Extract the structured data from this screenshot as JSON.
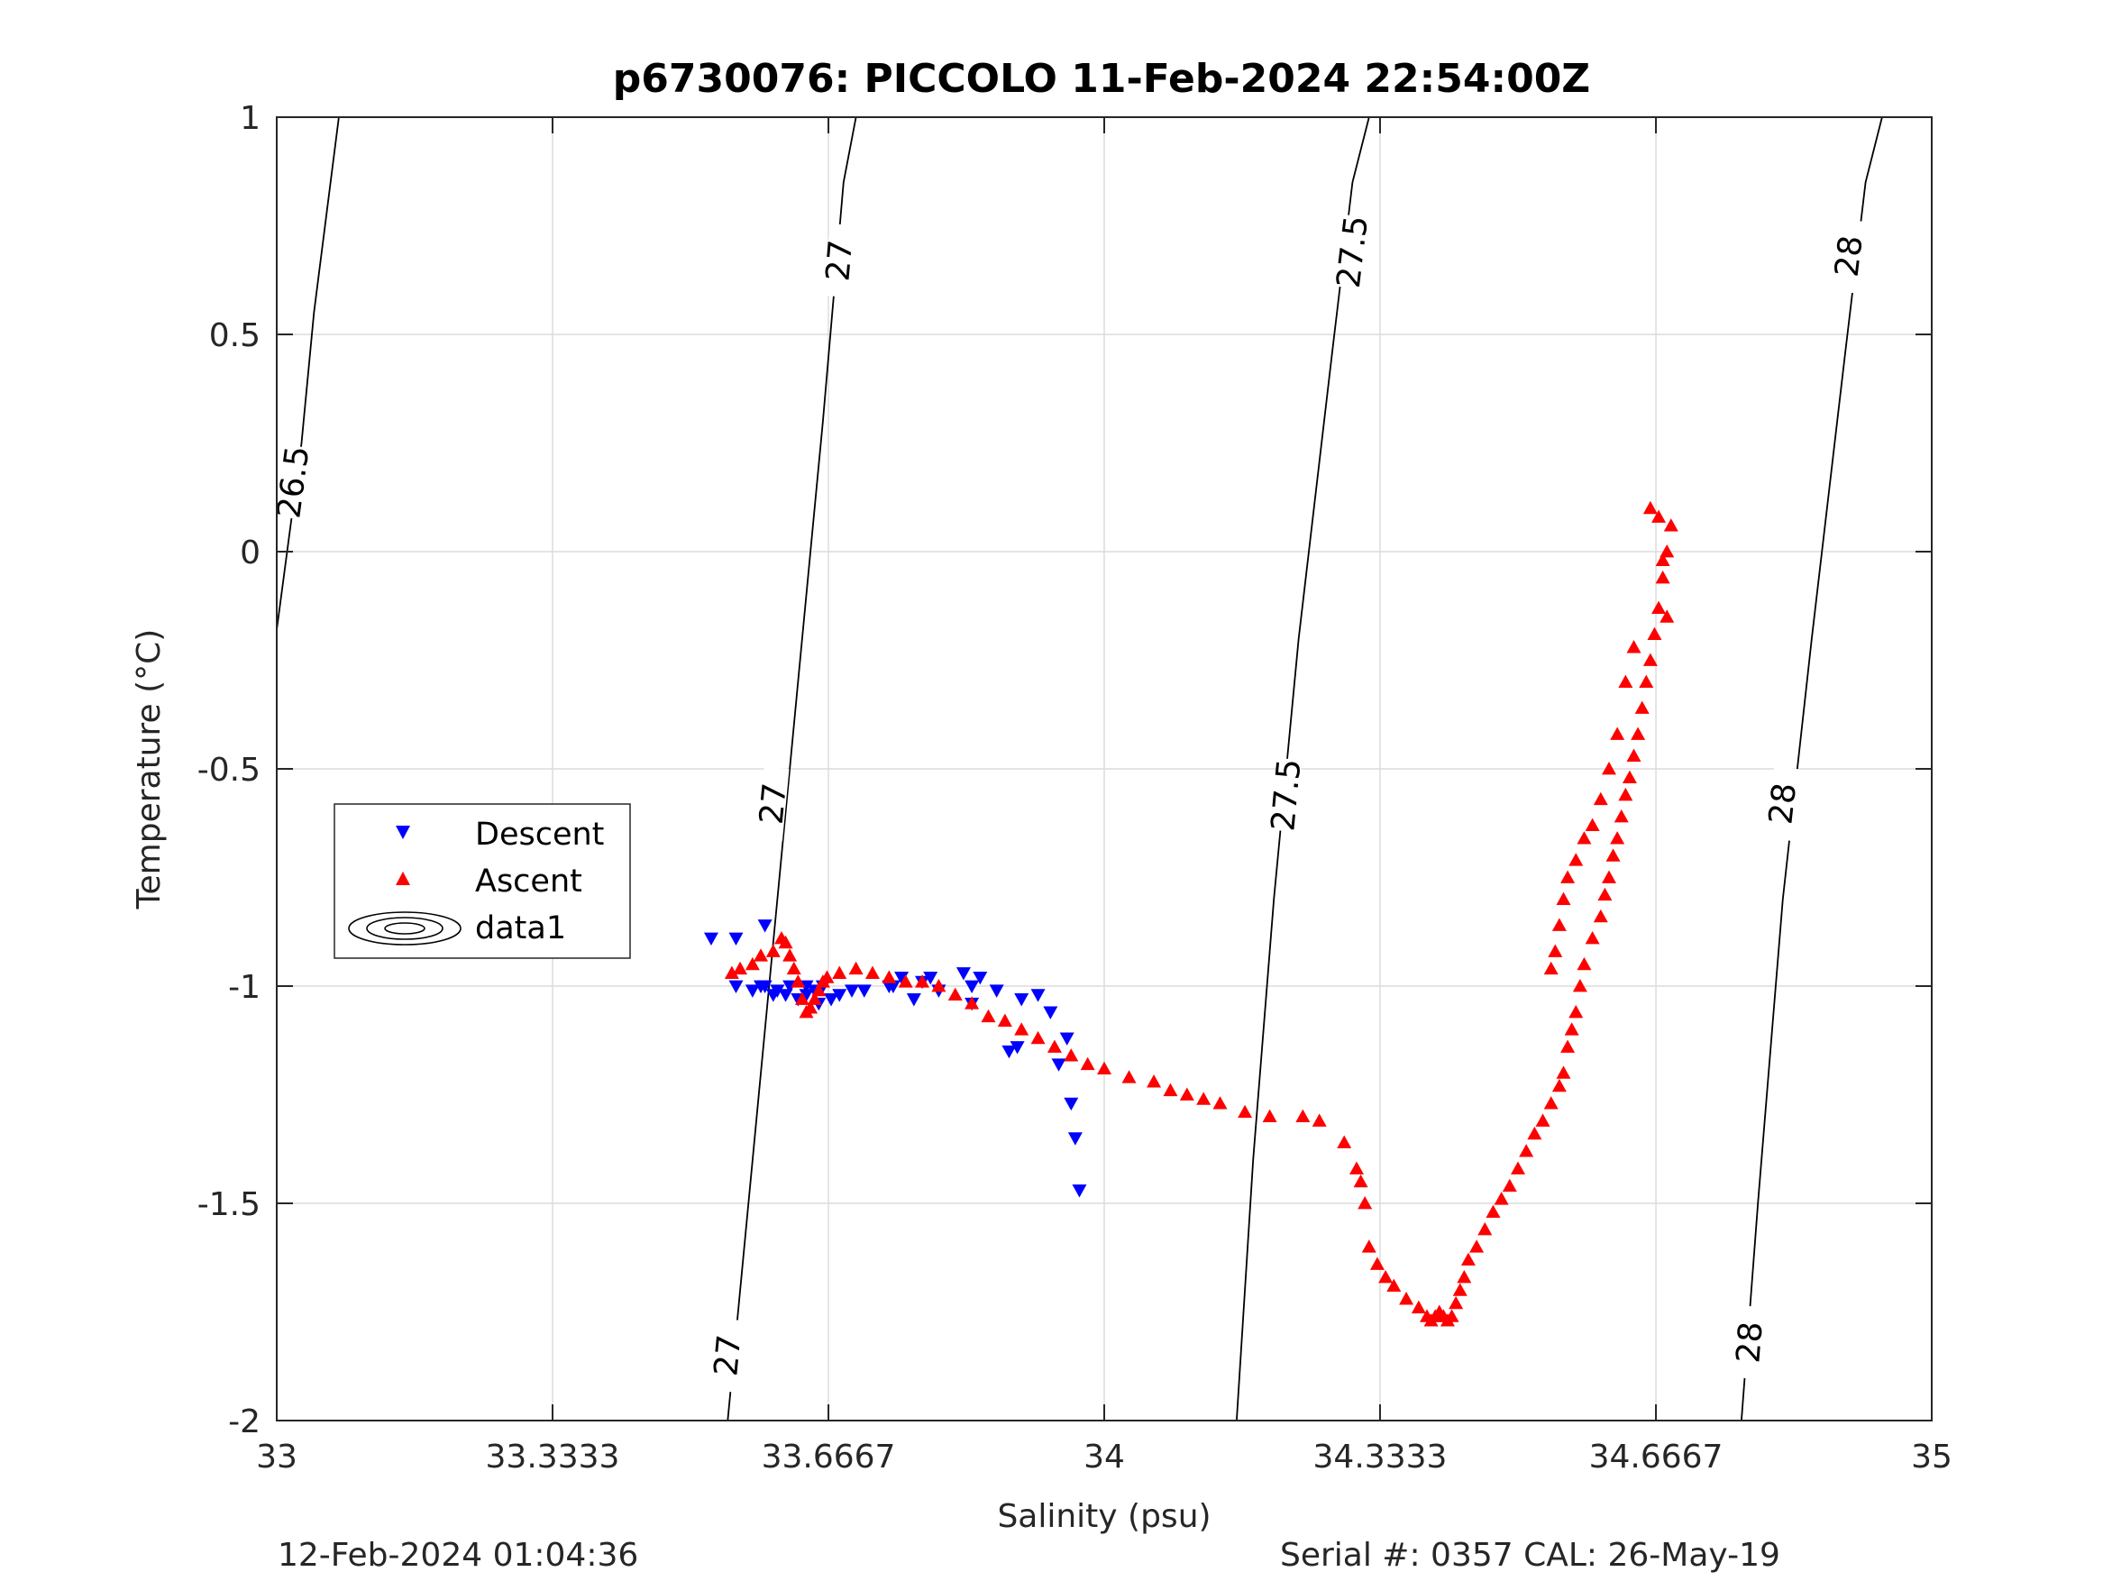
{
  "chart_data": {
    "type": "scatter",
    "title": "p6730076: PICCOLO 11-Feb-2024 22:54:00Z",
    "xlabel": "Salinity (psu)",
    "ylabel": "Temperature (°C)",
    "xlim": [
      33,
      35
    ],
    "ylim": [
      -2,
      1
    ],
    "x_ticks": [
      33,
      33.3333,
      33.6667,
      34,
      34.3333,
      34.6667,
      35
    ],
    "x_tick_labels": [
      "33",
      "33.3333",
      "33.6667",
      "34",
      "34.3333",
      "34.6667",
      "35"
    ],
    "y_ticks": [
      -2,
      -1.5,
      -1,
      -0.5,
      0,
      0.5,
      1
    ],
    "y_tick_labels": [
      "-2",
      "-1.5",
      "-1",
      "-0.5",
      "0",
      "0.5",
      "1"
    ],
    "grid": true,
    "legend_position": "middle-left",
    "footer_left": "12-Feb-2024 01:04:36",
    "footer_right": "Serial #: 0357  CAL: 26-May-19",
    "isopycnals": [
      {
        "label": "26.5",
        "points": [
          [
            33.0,
            -0.18
          ],
          [
            33.03,
            0.25
          ],
          [
            33.045,
            0.55
          ],
          [
            33.075,
            1.0
          ]
        ],
        "labels_at": [
          [
            33.02,
            0.16
          ]
        ]
      },
      {
        "label": "27",
        "points": [
          [
            33.545,
            -2.0
          ],
          [
            33.575,
            -1.4
          ],
          [
            33.6,
            -0.9
          ],
          [
            33.63,
            -0.3
          ],
          [
            33.66,
            0.3
          ],
          [
            33.685,
            0.85
          ],
          [
            33.7,
            1.0
          ]
        ],
        "labels_at": [
          [
            33.545,
            -1.85
          ],
          [
            33.6,
            -0.58
          ],
          [
            33.68,
            0.67
          ]
        ]
      },
      {
        "label": "27.5",
        "points": [
          [
            34.16,
            -2.0
          ],
          [
            34.18,
            -1.4
          ],
          [
            34.205,
            -0.8
          ],
          [
            34.235,
            -0.2
          ],
          [
            34.275,
            0.45
          ],
          [
            34.3,
            0.85
          ],
          [
            34.32,
            1.0
          ]
        ],
        "labels_at": [
          [
            34.22,
            -0.56
          ],
          [
            34.3,
            0.69
          ]
        ]
      },
      {
        "label": "28",
        "points": [
          [
            34.77,
            -2.0
          ],
          [
            34.79,
            -1.5
          ],
          [
            34.82,
            -0.8
          ],
          [
            34.855,
            -0.2
          ],
          [
            34.895,
            0.45
          ],
          [
            34.92,
            0.85
          ],
          [
            34.94,
            1.0
          ]
        ],
        "labels_at": [
          [
            34.78,
            -1.82
          ],
          [
            34.82,
            -0.58
          ],
          [
            34.9,
            0.68
          ]
        ]
      }
    ],
    "series": [
      {
        "name": "Descent",
        "color": "#0000ff",
        "marker": "triangle-down",
        "x": [
          33.525,
          33.555,
          33.59,
          33.555,
          33.575,
          33.585,
          33.59,
          33.6,
          33.605,
          33.615,
          33.62,
          33.63,
          33.64,
          33.64,
          33.65,
          33.655,
          33.66,
          33.67,
          33.68,
          33.695,
          33.71,
          33.74,
          33.745,
          33.755,
          33.77,
          33.78,
          33.79,
          33.8,
          33.83,
          33.84,
          33.84,
          33.85,
          33.87,
          33.885,
          33.895,
          33.9,
          33.92,
          33.935,
          33.945,
          33.955,
          33.96,
          33.965,
          33.97
        ],
        "y": [
          -0.89,
          -0.89,
          -0.86,
          -1.0,
          -1.01,
          -1.0,
          -1.0,
          -1.02,
          -1.01,
          -1.02,
          -1.0,
          -1.03,
          -1.02,
          -1.0,
          -1.01,
          -1.04,
          -1.0,
          -1.03,
          -1.02,
          -1.01,
          -1.01,
          -1.0,
          -1.0,
          -0.98,
          -1.03,
          -0.99,
          -0.98,
          -1.01,
          -0.97,
          -1.04,
          -1.0,
          -0.98,
          -1.01,
          -1.15,
          -1.14,
          -1.03,
          -1.02,
          -1.06,
          -1.18,
          -1.12,
          -1.27,
          -1.35,
          -1.47
        ]
      },
      {
        "name": "Ascent",
        "color": "#ff0000",
        "marker": "triangle-up",
        "x": [
          33.55,
          33.56,
          33.575,
          33.585,
          33.6,
          33.61,
          33.615,
          33.62,
          33.625,
          33.63,
          33.635,
          33.64,
          33.645,
          33.65,
          33.655,
          33.66,
          33.665,
          33.68,
          33.7,
          33.72,
          33.74,
          33.76,
          33.78,
          33.8,
          33.82,
          33.84,
          33.86,
          33.88,
          33.9,
          33.92,
          33.94,
          33.96,
          33.98,
          34.0,
          34.03,
          34.06,
          34.08,
          34.1,
          34.12,
          34.14,
          34.17,
          34.2,
          34.24,
          34.26,
          34.29,
          34.305,
          34.31,
          34.315,
          34.32,
          34.33,
          34.34,
          34.35,
          34.365,
          34.38,
          34.39,
          34.395,
          34.4,
          34.405,
          34.41,
          34.415,
          34.42,
          34.425,
          34.43,
          34.435,
          34.44,
          34.45,
          34.46,
          34.47,
          34.48,
          34.49,
          34.5,
          34.51,
          34.52,
          34.53,
          34.54,
          34.55,
          34.555,
          34.56,
          34.565,
          34.57,
          34.575,
          34.58,
          34.59,
          34.6,
          34.605,
          34.61,
          34.615,
          34.62,
          34.625,
          34.63,
          34.635,
          34.64,
          34.645,
          34.65,
          34.655,
          34.66,
          34.665,
          34.67,
          34.675,
          34.68,
          34.685,
          34.66,
          34.67,
          34.675,
          34.68,
          34.64,
          34.63,
          34.62,
          34.61,
          34.6,
          34.59,
          34.58,
          34.57,
          34.56,
          34.555,
          34.55,
          34.545,
          34.54
        ],
        "y": [
          -0.97,
          -0.96,
          -0.95,
          -0.93,
          -0.92,
          -0.89,
          -0.9,
          -0.93,
          -0.96,
          -0.99,
          -1.03,
          -1.06,
          -1.05,
          -1.03,
          -1.01,
          -0.99,
          -0.98,
          -0.97,
          -0.96,
          -0.97,
          -0.98,
          -0.99,
          -0.99,
          -1.0,
          -1.02,
          -1.04,
          -1.07,
          -1.08,
          -1.1,
          -1.12,
          -1.14,
          -1.16,
          -1.18,
          -1.19,
          -1.21,
          -1.22,
          -1.24,
          -1.25,
          -1.26,
          -1.27,
          -1.29,
          -1.3,
          -1.3,
          -1.31,
          -1.36,
          -1.42,
          -1.45,
          -1.5,
          -1.6,
          -1.64,
          -1.67,
          -1.69,
          -1.72,
          -1.74,
          -1.76,
          -1.77,
          -1.76,
          -1.75,
          -1.76,
          -1.77,
          -1.76,
          -1.73,
          -1.7,
          -1.67,
          -1.63,
          -1.6,
          -1.56,
          -1.52,
          -1.49,
          -1.46,
          -1.42,
          -1.38,
          -1.34,
          -1.31,
          -1.27,
          -1.23,
          -1.2,
          -1.14,
          -1.1,
          -1.06,
          -1.0,
          -0.95,
          -0.89,
          -0.84,
          -0.79,
          -0.75,
          -0.7,
          -0.66,
          -0.61,
          -0.56,
          -0.52,
          -0.47,
          -0.42,
          -0.36,
          -0.3,
          -0.25,
          -0.19,
          -0.13,
          -0.06,
          0.0,
          0.06,
          0.1,
          0.08,
          -0.02,
          -0.15,
          -0.22,
          -0.3,
          -0.42,
          -0.5,
          -0.57,
          -0.63,
          -0.66,
          -0.71,
          -0.75,
          -0.8,
          -0.86,
          -0.92,
          -0.96
        ]
      }
    ]
  },
  "legend": {
    "entries": [
      {
        "label": "Descent",
        "icon": "blue-triangle-down-icon"
      },
      {
        "label": "Ascent",
        "icon": "red-triangle-up-icon"
      },
      {
        "label": "data1",
        "icon": "contour-ellipse-icon"
      }
    ]
  }
}
